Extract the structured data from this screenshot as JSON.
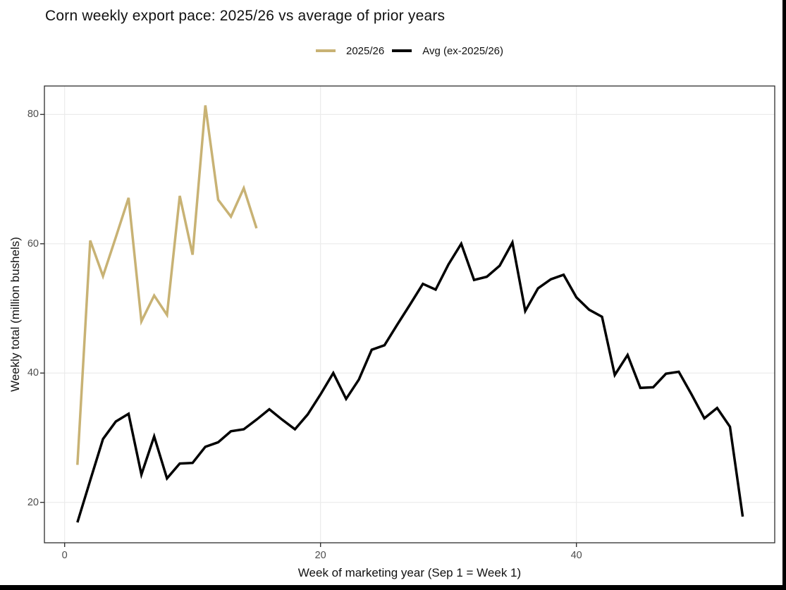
{
  "page": {
    "background": "#FFFFFF",
    "frame_color": "#000000"
  },
  "chart": {
    "title": "Corn weekly export pace: 2025/26 vs average of prior years",
    "xlabel": "Week of marketing year (Sep 1 = Week 1)",
    "ylabel": "Weekly total (million bushels)"
  },
  "chart_data": {
    "type": "line",
    "title": "Corn weekly export pace: 2025/26 vs average of prior years",
    "xlabel": "Week of marketing year (Sep 1 = Week 1)",
    "ylabel": "Weekly total (million bushels)",
    "xlim": [
      -1.58,
      55.5
    ],
    "ylim": [
      13.75,
      84.4
    ],
    "xticks": [
      0,
      20,
      40
    ],
    "yticks": [
      20,
      40,
      60,
      80
    ],
    "grid": "major-horizontal-and-vertical",
    "legend_position": "top-center",
    "style": {
      "grid_color": "#EBEBEB",
      "panel_border_color": "#2E2E2E",
      "tick_color": "#333333",
      "tick_label_color": "#4D4D4D",
      "line_width": 3.5
    },
    "series": [
      {
        "name": "2025/26",
        "color": "#C8B274",
        "x": [
          1,
          2,
          3,
          4,
          5,
          6,
          7,
          8,
          9,
          10,
          11,
          12,
          13,
          14,
          15
        ],
        "values": [
          25.8,
          60.5,
          55.0,
          61.0,
          67.1,
          48.0,
          52.0,
          49.0,
          67.4,
          58.3,
          81.4,
          66.8,
          64.2,
          68.6,
          62.4
        ]
      },
      {
        "name": "Avg (ex-2025/26)",
        "color": "#000000",
        "x": [
          1,
          2,
          3,
          4,
          5,
          6,
          7,
          8,
          9,
          10,
          11,
          12,
          13,
          14,
          15,
          16,
          17,
          18,
          19,
          20,
          21,
          22,
          23,
          24,
          25,
          26,
          27,
          28,
          29,
          30,
          31,
          32,
          33,
          34,
          35,
          36,
          37,
          38,
          39,
          40,
          41,
          42,
          43,
          44,
          45,
          46,
          47,
          48,
          49,
          50,
          51,
          52,
          53
        ],
        "values": [
          16.9,
          23.4,
          29.8,
          32.5,
          33.7,
          24.3,
          30.2,
          23.7,
          26.0,
          26.1,
          28.6,
          29.3,
          31.0,
          31.3,
          32.8,
          34.4,
          32.8,
          31.3,
          33.6,
          36.7,
          40.0,
          36.0,
          39.0,
          43.6,
          44.3,
          47.5,
          50.6,
          53.8,
          52.9,
          56.8,
          60.0,
          54.4,
          54.9,
          56.6,
          60.2,
          49.6,
          53.1,
          54.5,
          55.2,
          51.7,
          49.8,
          48.7,
          39.7,
          42.8,
          37.7,
          37.8,
          39.9,
          40.2,
          36.7,
          33.0,
          34.6,
          31.7,
          17.8
        ]
      }
    ]
  }
}
